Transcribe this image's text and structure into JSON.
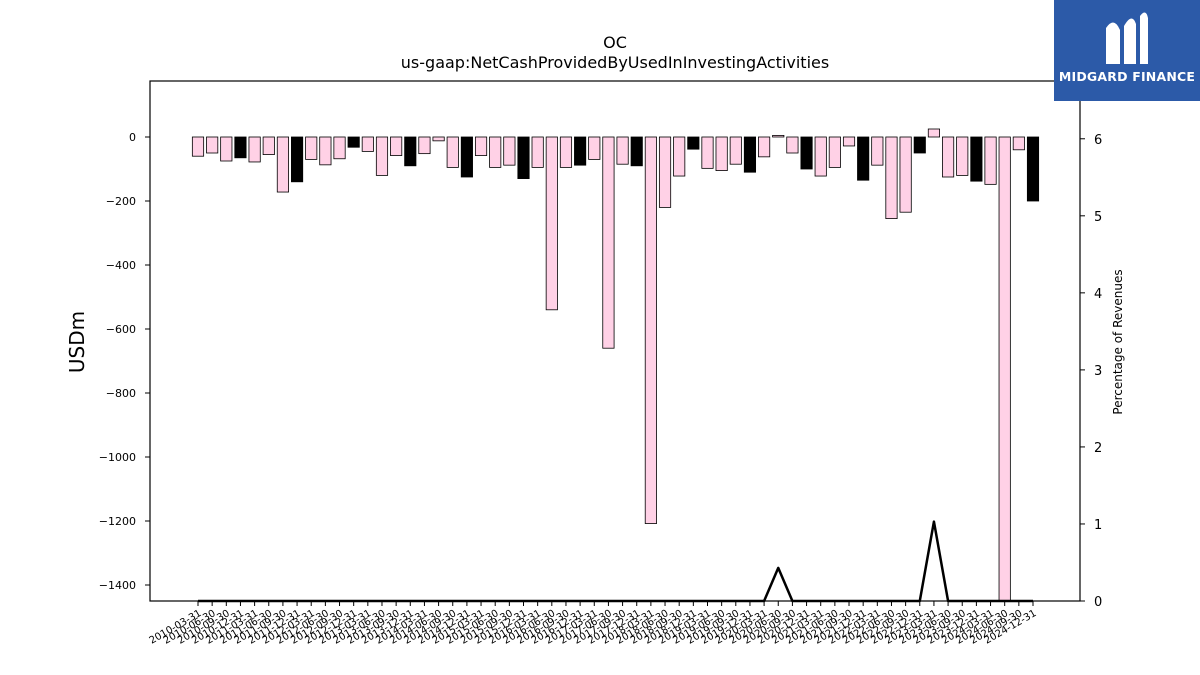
{
  "chart_data": {
    "type": "bar",
    "title": "OC",
    "subtitle": "us-gaap:NetCashProvidedByUsedInInvestingActivities",
    "ylabel": "USDm",
    "y2label": "Percentage of Revenues",
    "ylim": [
      -1450,
      175
    ],
    "y2lim": [
      0,
      6.75
    ],
    "yticks": [
      0,
      -200,
      -400,
      -600,
      -800,
      -1000,
      -1200,
      -1400
    ],
    "y2ticks": [
      0,
      1,
      2,
      3,
      4,
      5,
      6
    ],
    "categories": [
      "2010-03-31",
      "2010-06-30",
      "2010-09-30",
      "2010-12-31",
      "2011-03-31",
      "2011-06-30",
      "2011-09-30",
      "2011-12-31",
      "2012-03-31",
      "2012-06-30",
      "2012-09-30",
      "2012-12-31",
      "2013-03-31",
      "2013-06-30",
      "2013-09-30",
      "2013-12-31",
      "2014-03-31",
      "2014-06-30",
      "2014-09-30",
      "2014-12-31",
      "2015-03-31",
      "2015-06-30",
      "2015-09-30",
      "2015-12-31",
      "2016-03-31",
      "2016-06-30",
      "2016-09-30",
      "2016-12-31",
      "2017-03-31",
      "2017-06-30",
      "2017-09-30",
      "2017-12-31",
      "2018-03-31",
      "2018-06-30",
      "2018-09-30",
      "2018-12-31",
      "2019-03-31",
      "2019-06-30",
      "2019-09-30",
      "2019-12-31",
      "2020-03-31",
      "2020-06-30",
      "2020-09-30",
      "2020-12-31",
      "2021-03-31",
      "2021-06-30",
      "2021-09-30",
      "2021-12-31",
      "2022-03-31",
      "2022-06-30",
      "2022-09-30",
      "2022-12-31",
      "2023-03-31",
      "2023-06-30",
      "2023-09-30",
      "2023-12-31",
      "2024-03-31",
      "2024-06-30",
      "2024-09-30",
      "2024-12-31"
    ],
    "series": [
      {
        "values": [
          -60,
          -50,
          -75,
          -65,
          -78,
          -55,
          -172,
          -140,
          -70,
          -87,
          -68,
          -32,
          -45,
          -120,
          -58,
          -90,
          -52,
          -12,
          -95,
          -125,
          -58,
          -95,
          -88,
          -130,
          -95,
          -540,
          -95,
          -88,
          -70,
          -660,
          -85,
          -90,
          -1208,
          -220,
          -122,
          -38,
          -98,
          -105,
          -85,
          -110,
          -62,
          5,
          -50,
          -100,
          -122,
          -95,
          -28,
          -135,
          -88,
          -255,
          -235,
          -50,
          25,
          -125,
          -120,
          -138,
          -148,
          -1450,
          -40,
          -200
        ],
        "colors": [
          "pink",
          "pink",
          "pink",
          "black",
          "pink",
          "pink",
          "pink",
          "black",
          "pink",
          "pink",
          "pink",
          "black",
          "pink",
          "pink",
          "pink",
          "black",
          "pink",
          "pink",
          "pink",
          "black",
          "pink",
          "pink",
          "pink",
          "black",
          "pink",
          "pink",
          "pink",
          "black",
          "pink",
          "pink",
          "pink",
          "black",
          "pink",
          "pink",
          "pink",
          "black",
          "pink",
          "pink",
          "pink",
          "black",
          "pink",
          "pink",
          "pink",
          "black",
          "pink",
          "pink",
          "pink",
          "black",
          "pink",
          "pink",
          "pink",
          "black",
          "pink",
          "pink",
          "pink",
          "black",
          "pink",
          "pink",
          "pink",
          "black"
        ]
      },
      {
        "type": "line",
        "axis": "y2",
        "values": [
          0,
          0,
          0,
          0,
          0,
          0,
          0,
          0,
          0,
          0,
          0,
          0,
          0,
          0,
          0,
          0,
          0,
          0,
          0,
          0,
          0,
          0,
          0,
          0,
          0,
          0,
          0,
          0,
          0,
          0,
          0,
          0,
          0,
          0,
          0,
          0,
          0,
          0,
          0,
          0,
          0,
          0.43,
          0,
          0,
          0,
          0,
          0,
          0,
          0,
          0,
          0,
          0,
          1.03,
          0,
          0,
          0,
          0,
          0,
          0,
          0
        ]
      }
    ],
    "colors": {
      "pink": "#ffd1e6",
      "black": "#000000",
      "edge": "#000000",
      "line": "#000000"
    },
    "grid": false,
    "legend": "none"
  },
  "logo": {
    "text": "MIDGARD FINANCE",
    "color": "#2c5aa8"
  }
}
